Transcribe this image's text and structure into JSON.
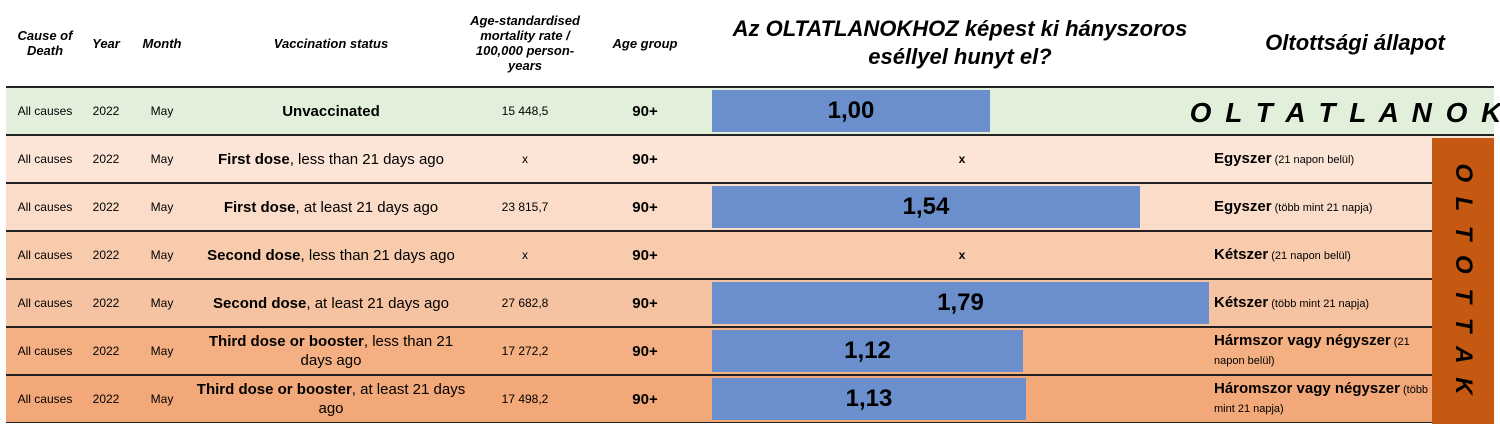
{
  "headers": {
    "cause": "Cause of Death",
    "year": "Year",
    "month": "Month",
    "vaccination": "Vaccination status",
    "rate": "Age-standardised mortality rate / 100,000 person-years",
    "age_group": "Age group",
    "ratio_title": "Az OLTATLANOKHOZ képest ki hányszoros eséllyel hunyt el?",
    "status_title": "Oltottsági állapot"
  },
  "oltatlanok_label": "O L T A T L A N O K",
  "oltottak_label": "O L T O T T A K",
  "colors": {
    "unvaccinated_bg": "#e2efda",
    "shades": [
      "#fce4d6",
      "#fbdcc8",
      "#f8cbad",
      "#f6c3a2",
      "#f4b083",
      "#f2a878"
    ],
    "bar": "#6a8fcc",
    "oltottak_band": "#c65911"
  },
  "rows": [
    {
      "cause": "All causes",
      "year": "2022",
      "month": "May",
      "status_bold": "Unvaccinated",
      "status_rest": "",
      "rate": "15 448,5",
      "age": "90+",
      "ratio_label": "1,00",
      "hu_bold": "",
      "hu_small": ""
    },
    {
      "cause": "All causes",
      "year": "2022",
      "month": "May",
      "status_bold": "First dose",
      "status_rest": ", less than 21 days ago",
      "rate": "x",
      "age": "90+",
      "ratio_label": "x",
      "hu_bold": "Egyszer",
      "hu_small": " (21 napon belül)"
    },
    {
      "cause": "All causes",
      "year": "2022",
      "month": "May",
      "status_bold": "First dose",
      "status_rest": ", at least 21 days ago",
      "rate": "23 815,7",
      "age": "90+",
      "ratio_label": "1,54",
      "hu_bold": "Egyszer",
      "hu_small": " (több mint 21 napja)"
    },
    {
      "cause": "All causes",
      "year": "2022",
      "month": "May",
      "status_bold": "Second dose",
      "status_rest": ", less than 21 days ago",
      "rate": "x",
      "age": "90+",
      "ratio_label": "x",
      "hu_bold": "Kétszer",
      "hu_small": " (21 napon belül)"
    },
    {
      "cause": "All causes",
      "year": "2022",
      "month": "May",
      "status_bold": "Second dose",
      "status_rest": ",  at least 21 days ago",
      "rate": "27 682,8",
      "age": "90+",
      "ratio_label": "1,79",
      "hu_bold": "Kétszer",
      "hu_small": " (több mint 21 napja)"
    },
    {
      "cause": "All causes",
      "year": "2022",
      "month": "May",
      "status_bold": "Third dose or booster",
      "status_rest": ", less than 21 days ago",
      "rate": "17 272,2",
      "age": "90+",
      "ratio_label": "1,12",
      "hu_bold": "Hármszor vagy négyszer",
      "hu_small": " (21 napon belül)"
    },
    {
      "cause": "All causes",
      "year": "2022",
      "month": "May",
      "status_bold": "Third dose or booster",
      "status_rest": ", at least 21 days ago",
      "rate": "17 498,2",
      "age": "90+",
      "ratio_label": "1,13",
      "hu_bold": "Háromszor vagy négyszer",
      "hu_small": " (több mint 21 napja)"
    }
  ],
  "chart_data": {
    "type": "bar",
    "orientation": "horizontal",
    "title": "Az OLTATLANOKHOZ képest ki hányszoros eséllyel hunyt el?",
    "categories": [
      "Unvaccinated",
      "First dose, less than 21 days ago",
      "First dose, at least 21 days ago",
      "Second dose, less than 21 days ago",
      "Second dose, at least 21 days ago",
      "Third dose or booster, less than 21 days ago",
      "Third dose or booster, at least 21 days ago"
    ],
    "values": [
      1.0,
      null,
      1.54,
      null,
      1.79,
      1.12,
      1.13
    ],
    "value_labels": [
      "1,00",
      "x",
      "1,54",
      "x",
      "1,79",
      "1,12",
      "1,13"
    ],
    "xlim": [
      0,
      1.8
    ],
    "grid": false
  }
}
